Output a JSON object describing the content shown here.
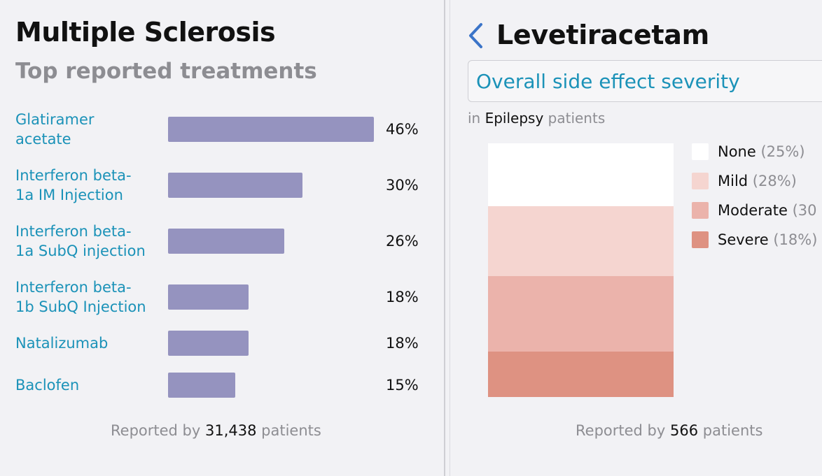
{
  "left": {
    "title": "Multiple Sclerosis",
    "subtitle": "Top reported treatments",
    "footer": {
      "prefix": "Reported by",
      "count": "31,438",
      "suffix": "patients"
    }
  },
  "right": {
    "drug": "Levetiracetam",
    "metric_selector": "Overall side effect severity",
    "condition": {
      "prefix": "in",
      "name": "Epilepsy",
      "suffix": "patients"
    },
    "footer": {
      "prefix": "Reported by",
      "count": "566",
      "suffix": "patients"
    },
    "icons": {
      "back": "chevron-left-icon"
    }
  },
  "colors": {
    "bar": "#9593bf",
    "link": "#1b92b8",
    "none": "#ffffff",
    "mild": "#f5d5d0",
    "moderate": "#ebb3ab",
    "severe": "#de9282"
  },
  "chart_data": [
    {
      "type": "bar",
      "orientation": "horizontal",
      "title": "Top reported treatments",
      "categories": [
        "Glatiramer acetate",
        "Interferon beta-1a IM Injection",
        "Interferon beta-1a SubQ injection",
        "Interferon beta-1b SubQ Injection",
        "Natalizumab",
        "Baclofen"
      ],
      "label_lines": [
        [
          "Glatiramer",
          "acetate"
        ],
        [
          "Interferon beta-",
          "1a IM Injection"
        ],
        [
          "Interferon beta-",
          "1a SubQ injection"
        ],
        [
          "Interferon beta-",
          "1b SubQ Injection"
        ],
        [
          "Natalizumab"
        ],
        [
          "Baclofen"
        ]
      ],
      "values": [
        46,
        30,
        26,
        18,
        18,
        15
      ],
      "value_labels": [
        "46%",
        "30%",
        "26%",
        "18%",
        "18%",
        "15%"
      ],
      "unit": "%",
      "xlim": [
        0,
        46
      ],
      "grid": false
    },
    {
      "type": "bar",
      "stacked": true,
      "title": "Overall side effect severity",
      "series": [
        {
          "name": "None",
          "value": 25,
          "label": "(25%)",
          "color": "#ffffff"
        },
        {
          "name": "Mild",
          "value": 28,
          "label": "(28%)",
          "color": "#f5d5d0"
        },
        {
          "name": "Moderate",
          "value": 30,
          "label": "(30",
          "color": "#ebb3ab"
        },
        {
          "name": "Severe",
          "value": 18,
          "label": "(18%)",
          "color": "#de9282"
        }
      ],
      "legend": "right",
      "grid": false
    }
  ]
}
